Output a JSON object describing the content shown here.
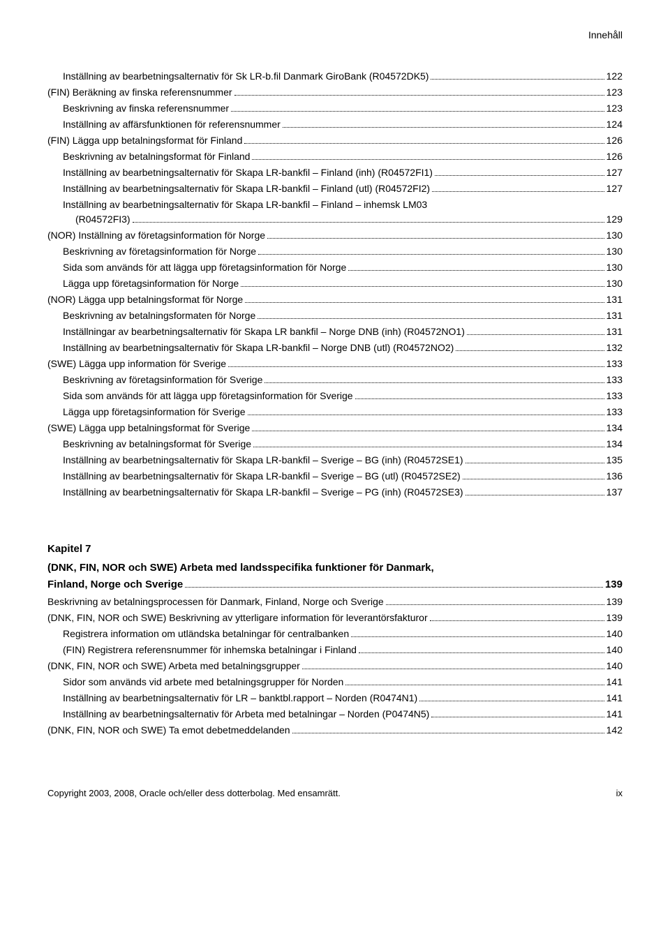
{
  "header": {
    "label": "Innehåll"
  },
  "toc1": [
    {
      "indent": 1,
      "title": "Inställning av bearbetningsalternativ för Sk LR-b.fil Danmark GiroBank (R04572DK5)",
      "page": "122"
    },
    {
      "indent": 0,
      "title": "(FIN) Beräkning av finska referensnummer",
      "page": "123"
    },
    {
      "indent": 1,
      "title": "Beskrivning av finska referensnummer",
      "page": "123"
    },
    {
      "indent": 1,
      "title": "Inställning av affärsfunktionen för referensnummer",
      "page": "124"
    },
    {
      "indent": 0,
      "title": "(FIN) Lägga upp betalningsformat för Finland",
      "page": "126"
    },
    {
      "indent": 1,
      "title": "Beskrivning av betalningsformat för Finland",
      "page": "126"
    },
    {
      "indent": 1,
      "title": "Inställning av bearbetningsalternativ för Skapa LR-bankfil – Finland (inh) (R04572FI1)",
      "page": "127"
    },
    {
      "indent": 1,
      "title": "Inställning av bearbetningsalternativ för Skapa LR-bankfil – Finland (utl) (R04572FI2)",
      "page": "127"
    },
    {
      "indent": 1,
      "multiline": true,
      "title1": "Inställning av bearbetningsalternativ för Skapa LR-bankfil – Finland – inhemsk LM03",
      "title2": "(R04572FI3)",
      "page": "129"
    },
    {
      "indent": 0,
      "title": "(NOR) Inställning av företagsinformation för Norge",
      "page": "130"
    },
    {
      "indent": 1,
      "title": "Beskrivning av företagsinformation för Norge",
      "page": "130"
    },
    {
      "indent": 1,
      "title": "Sida som används för att lägga upp företagsinformation för Norge",
      "page": "130"
    },
    {
      "indent": 1,
      "title": "Lägga upp företagsinformation för Norge",
      "page": "130"
    },
    {
      "indent": 0,
      "title": "(NOR) Lägga upp betalningsformat för Norge",
      "page": "131"
    },
    {
      "indent": 1,
      "title": "Beskrivning av betalningsformaten för Norge",
      "page": "131"
    },
    {
      "indent": 1,
      "title": "Inställningar av bearbetningsalternativ för Skapa LR bankfil – Norge DNB (inh) (R04572NO1)",
      "page": "131"
    },
    {
      "indent": 1,
      "title": "Inställning av bearbetningsalternativ för Skapa LR-bankfil – Norge DNB (utl) (R04572NO2)",
      "page": "132"
    },
    {
      "indent": 0,
      "title": "(SWE) Lägga upp information för Sverige",
      "page": "133"
    },
    {
      "indent": 1,
      "title": "Beskrivning av företagsinformation för Sverige",
      "page": "133"
    },
    {
      "indent": 1,
      "title": "Sida som används för att lägga upp företagsinformation för Sverige",
      "page": "133"
    },
    {
      "indent": 1,
      "title": "Lägga upp företagsinformation för Sverige",
      "page": "133"
    },
    {
      "indent": 0,
      "title": "(SWE) Lägga upp betalningsformat för Sverige",
      "page": "134"
    },
    {
      "indent": 1,
      "title": "Beskrivning av betalningsformat för Sverige",
      "page": "134"
    },
    {
      "indent": 1,
      "title": "Inställning av bearbetningsalternativ för Skapa LR-bankfil – Sverige – BG (inh) (R04572SE1)",
      "page": "135"
    },
    {
      "indent": 1,
      "title": "Inställning av bearbetningsalternativ för Skapa LR-bankfil – Sverige – BG (utl) (R04572SE2)",
      "page": "136"
    },
    {
      "indent": 1,
      "title": "Inställning av bearbetningsalternativ för Skapa LR-bankfil – Sverige – PG (inh) (R04572SE3)",
      "page": "137"
    }
  ],
  "chapter7": {
    "label": "Kapitel 7",
    "title1": "(DNK, FIN, NOR och SWE) Arbeta med landsspecifika funktioner för Danmark,",
    "title2": "Finland, Norge och Sverige",
    "page": "139"
  },
  "toc2": [
    {
      "indent": 0,
      "title": "Beskrivning av betalningsprocessen för Danmark, Finland, Norge och Sverige",
      "page": "139"
    },
    {
      "indent": 0,
      "title": "(DNK, FIN, NOR och SWE) Beskrivning av ytterligare information för leverantörsfakturor",
      "page": "139"
    },
    {
      "indent": 1,
      "title": "Registrera information om utländska betalningar för centralbanken",
      "page": "140"
    },
    {
      "indent": 1,
      "title": "(FIN) Registrera referensnummer för inhemska betalningar i Finland",
      "page": "140"
    },
    {
      "indent": 0,
      "title": "(DNK, FIN, NOR och SWE) Arbeta med betalningsgrupper",
      "page": "140"
    },
    {
      "indent": 1,
      "title": "Sidor som används vid arbete med betalningsgrupper för Norden",
      "page": "141"
    },
    {
      "indent": 1,
      "title": "Inställning av bearbetningsalternativ för LR – banktbl.rapport – Norden (R0474N1)",
      "page": "141"
    },
    {
      "indent": 1,
      "title": "Inställning av bearbetningsalternativ för Arbeta med betalningar – Norden (P0474N5)",
      "page": "141"
    },
    {
      "indent": 0,
      "title": "(DNK, FIN, NOR och SWE) Ta emot debetmeddelanden",
      "page": "142"
    }
  ],
  "footer": {
    "copyright": "Copyright 2003, 2008, Oracle och/eller dess dotterbolag. Med ensamrätt.",
    "pagenum": "ix"
  }
}
